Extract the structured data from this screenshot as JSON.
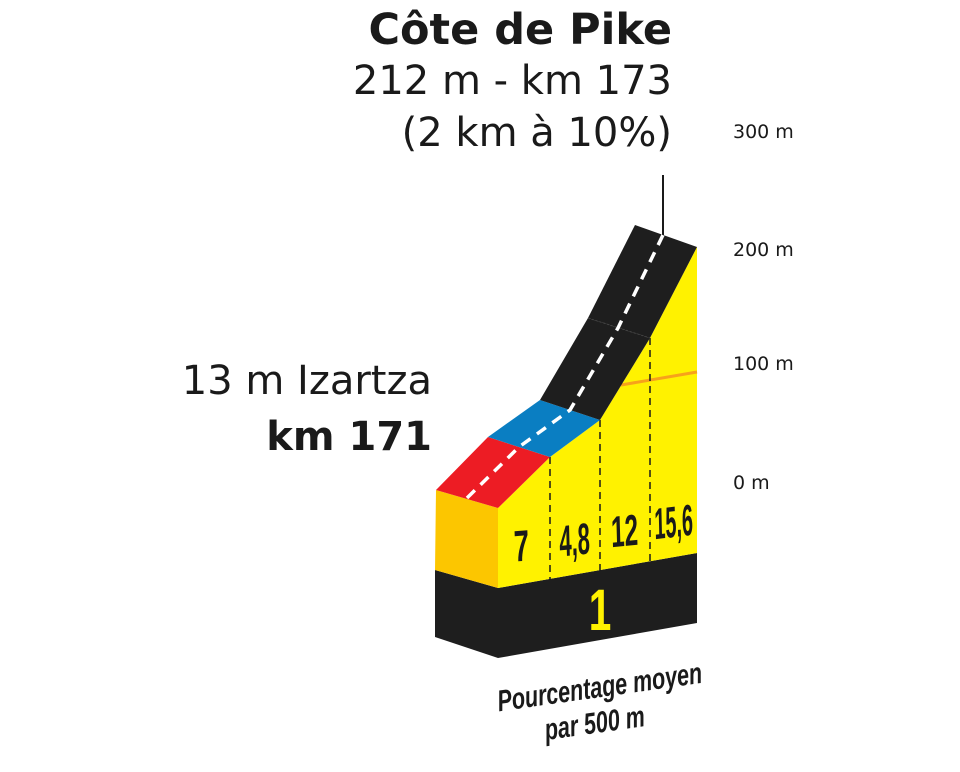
{
  "climb": {
    "name": "Côte de Pike",
    "summit_info": "212 m - km 173",
    "gradient_info": "(2 km à 10%)",
    "start_info": "13 m Izartza",
    "start_km": "km 171",
    "category": "1"
  },
  "axis": {
    "labels": [
      "300 m",
      "200 m",
      "100 m",
      "0 m"
    ]
  },
  "segments": [
    {
      "percent": "7",
      "color": "#ed1c24"
    },
    {
      "percent": "4,8",
      "color": "#0a7ec2"
    },
    {
      "percent": "12",
      "color": "#1e1e1e"
    },
    {
      "percent": "15,6",
      "color": "#1e1e1e"
    }
  ],
  "legend": {
    "line1": "Pourcentage moyen",
    "line2": "par 500 m"
  },
  "colors": {
    "profile_face": "#fff200",
    "side_face": "#fcc600",
    "base": "#1e1e1e",
    "category_number": "#fff200"
  }
}
